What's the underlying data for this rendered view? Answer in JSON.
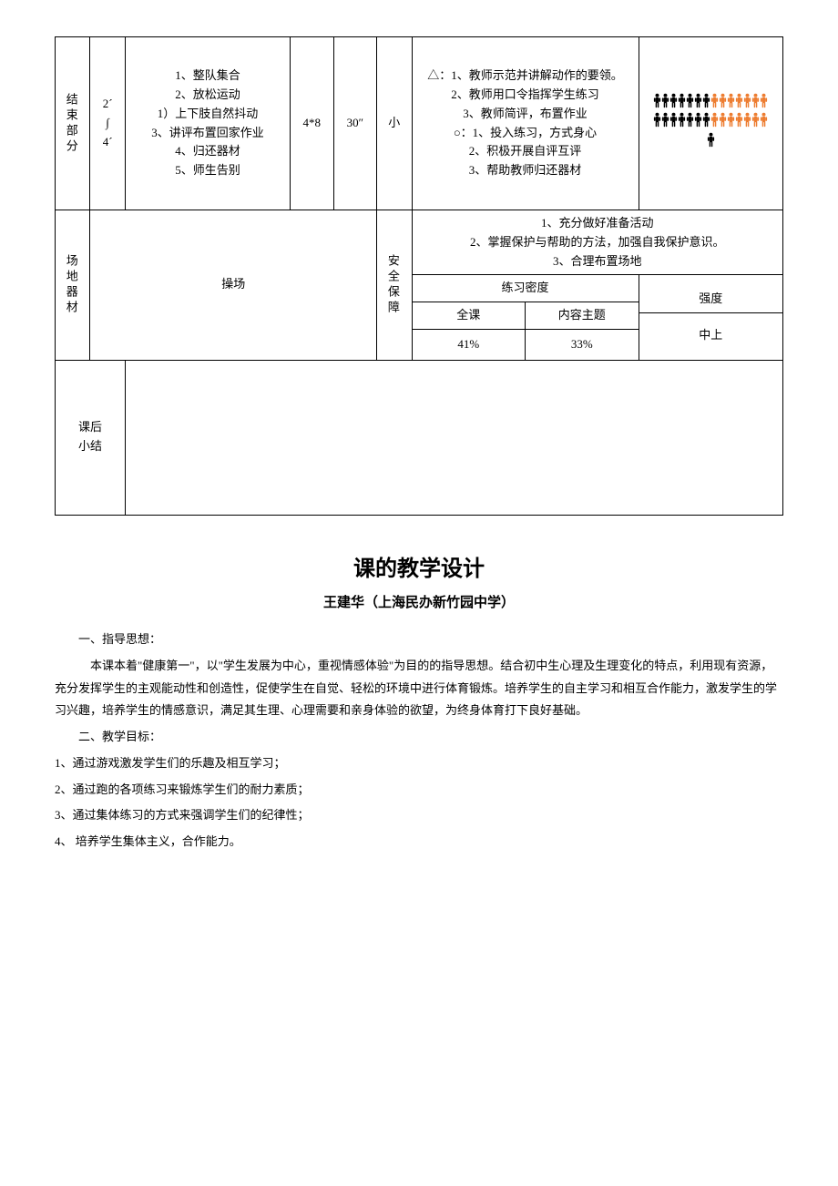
{
  "colors": {
    "text": "#000000",
    "border": "#000000",
    "background": "#ffffff",
    "person_black": "#000000",
    "person_orange": "#ed7d31"
  },
  "typography": {
    "body_fontsize": 13,
    "title_fontsize": 24,
    "subtitle_fontsize": 15
  },
  "end_section": {
    "label": "结束部分",
    "time": "2´\n∫\n4´",
    "content": "1、整队集合\n2、放松运动\n1）上下肢自然抖动\n3、讲评布置回家作业\n4、归还器材\n5、师生告别",
    "reps": "4*8",
    "duration": "30″",
    "intensity_cell": "小",
    "methods": "△：1、教师示范并讲解动作的要领。\n2、教师用口令指挥学生练习\n3、教师简评，布置作业\n○：1、投入练习，方式身心\n2、积极开展自评互评\n3、帮助教师归还器材",
    "formation": {
      "rows": [
        [
          "b",
          "b",
          "b",
          "b",
          "b",
          "b",
          "b",
          "o",
          "o",
          "o",
          "o",
          "o",
          "o",
          "o"
        ],
        [
          "b",
          "b",
          "b",
          "b",
          "b",
          "b",
          "b",
          "o",
          "o",
          "o",
          "o",
          "o",
          "o",
          "o"
        ]
      ],
      "teacher": "b"
    }
  },
  "venue": {
    "label": "场地器材",
    "value": "操场",
    "safety_label": "安全保障",
    "safety_items": "1、充分做好准备活动\n2、掌握保护与帮助的方法，加强自我保护意识。\n3、合理布置场地",
    "density_label": "练习密度",
    "intensity_label": "强度",
    "full_label": "全课",
    "topic_label": "内容主题",
    "full_val": "41%",
    "topic_val": "33%",
    "intensity_val": "中上"
  },
  "after": {
    "label": "课后\n小结"
  },
  "design": {
    "title": "课的教学设计",
    "subtitle": "王建华（上海民办新竹园中学）",
    "s1_h": "一、指导思想：",
    "s1_body": "本课本着\"健康第一\"，以\"学生发展为中心，重视情感体验\"为目的的指导思想。结合初中生心理及生理变化的特点，利用现有资源，充分发挥学生的主观能动性和创造性，促使学生在自觉、轻松的环境中进行体育锻炼。培养学生的自主学习和相互合作能力，激发学生的学习兴趣，培养学生的情感意识，满足其生理、心理需要和亲身体验的欲望，为终身体育打下良好基础。",
    "s2_h": "二、教学目标：",
    "objectives": [
      "1、通过游戏激发学生们的乐趣及相互学习；",
      "2、通过跑的各项练习来锻炼学生们的耐力素质；",
      "3、通过集体练习的方式来强调学生们的纪律性；",
      "4、 培养学生集体主义，合作能力。"
    ]
  }
}
